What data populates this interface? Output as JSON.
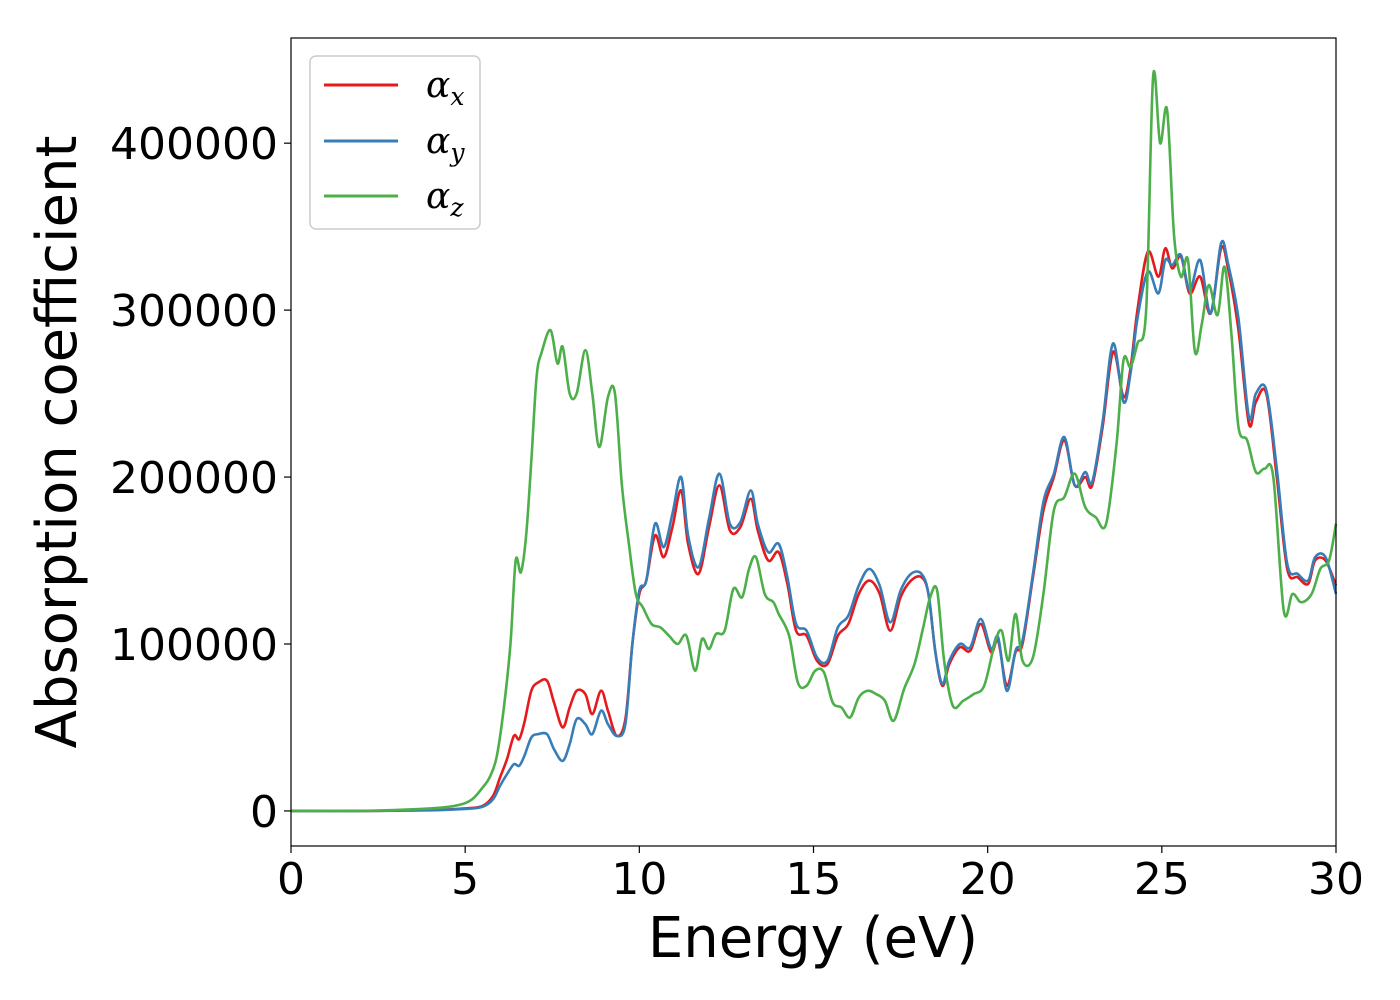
{
  "chart_data": {
    "type": "line",
    "title": "",
    "xlabel": "Energy (eV)",
    "ylabel": "Absorption coefficient",
    "xlim": [
      0,
      30
    ],
    "ylim": [
      -21000,
      463000
    ],
    "xticks": [
      0,
      5,
      10,
      15,
      20,
      25,
      30
    ],
    "yticks": [
      0,
      100000,
      200000,
      300000,
      400000
    ],
    "grid": false,
    "legend_position": "top-left",
    "series": [
      {
        "name": "α_x",
        "symbol": "α",
        "subscript": "x",
        "color": "#e41a1c",
        "x": [
          0,
          2,
          4,
          5,
          5.5,
          5.8,
          6.0,
          6.2,
          6.4,
          6.55,
          6.7,
          6.9,
          7.1,
          7.35,
          7.55,
          7.8,
          8.0,
          8.2,
          8.45,
          8.65,
          8.9,
          9.1,
          9.35,
          9.6,
          9.8,
          10.0,
          10.2,
          10.45,
          10.7,
          10.95,
          11.2,
          11.4,
          11.7,
          12.0,
          12.3,
          12.6,
          12.9,
          13.2,
          13.4,
          13.7,
          14.0,
          14.25,
          14.5,
          14.8,
          15.1,
          15.4,
          15.7,
          16.0,
          16.3,
          16.6,
          16.9,
          17.2,
          17.5,
          17.8,
          18.1,
          18.3,
          18.5,
          18.7,
          18.9,
          19.2,
          19.5,
          19.8,
          20.1,
          20.3,
          20.55,
          20.8,
          21.0,
          21.3,
          21.6,
          21.9,
          22.2,
          22.5,
          22.8,
          23.0,
          23.3,
          23.6,
          23.9,
          24.1,
          24.3,
          24.6,
          24.9,
          25.1,
          25.3,
          25.55,
          25.8,
          26.1,
          26.4,
          26.7,
          26.9,
          27.2,
          27.5,
          27.7,
          28.0,
          28.3,
          28.6,
          28.9,
          29.2,
          29.4,
          29.7,
          30.0
        ],
        "values": [
          0,
          0,
          500,
          1500,
          3000,
          9000,
          20000,
          31000,
          45000,
          43000,
          53000,
          72000,
          77000,
          78000,
          65000,
          50000,
          62000,
          72000,
          70000,
          58000,
          72000,
          60000,
          45000,
          55000,
          100000,
          130000,
          138000,
          165000,
          152000,
          170000,
          192000,
          160000,
          142000,
          170000,
          195000,
          168000,
          170000,
          187000,
          168000,
          150000,
          155000,
          136000,
          108000,
          105000,
          90000,
          88000,
          105000,
          112000,
          130000,
          138000,
          130000,
          108000,
          128000,
          138000,
          140000,
          130000,
          95000,
          75000,
          88000,
          98000,
          96000,
          112000,
          95000,
          102000,
          75000,
          95000,
          100000,
          140000,
          180000,
          200000,
          222000,
          195000,
          200000,
          195000,
          230000,
          275000,
          248000,
          265000,
          300000,
          335000,
          320000,
          337000,
          325000,
          332000,
          310000,
          320000,
          298000,
          337000,
          325000,
          288000,
          232000,
          245000,
          250000,
          200000,
          145000,
          140000,
          136000,
          150000,
          150000,
          135000
        ]
      },
      {
        "name": "α_y",
        "symbol": "α",
        "subscript": "y",
        "color": "#377eb8",
        "x": [
          0,
          2,
          4,
          5,
          5.5,
          5.8,
          6.0,
          6.2,
          6.4,
          6.55,
          6.7,
          6.9,
          7.1,
          7.35,
          7.55,
          7.8,
          8.0,
          8.2,
          8.45,
          8.65,
          8.9,
          9.1,
          9.35,
          9.6,
          9.8,
          10.0,
          10.2,
          10.45,
          10.7,
          10.95,
          11.2,
          11.4,
          11.7,
          12.0,
          12.3,
          12.6,
          12.9,
          13.2,
          13.4,
          13.7,
          14.0,
          14.25,
          14.5,
          14.8,
          15.1,
          15.4,
          15.7,
          16.0,
          16.3,
          16.6,
          16.9,
          17.2,
          17.5,
          17.8,
          18.1,
          18.3,
          18.5,
          18.7,
          18.9,
          19.2,
          19.5,
          19.8,
          20.1,
          20.3,
          20.55,
          20.8,
          21.0,
          21.3,
          21.6,
          21.9,
          22.2,
          22.5,
          22.8,
          23.0,
          23.3,
          23.6,
          23.9,
          24.1,
          24.3,
          24.6,
          24.9,
          25.1,
          25.3,
          25.55,
          25.8,
          26.1,
          26.4,
          26.7,
          26.9,
          27.2,
          27.5,
          27.7,
          28.0,
          28.3,
          28.6,
          28.9,
          29.2,
          29.4,
          29.7,
          30.0
        ],
        "values": [
          0,
          0,
          400,
          1200,
          2500,
          7000,
          15000,
          22000,
          28000,
          27000,
          33000,
          44000,
          46000,
          46000,
          37000,
          30000,
          40000,
          55000,
          52000,
          46000,
          60000,
          52000,
          45000,
          52000,
          100000,
          132000,
          138000,
          172000,
          158000,
          178000,
          200000,
          165000,
          146000,
          175000,
          202000,
          172000,
          173000,
          192000,
          172000,
          155000,
          160000,
          140000,
          112000,
          108000,
          92000,
          90000,
          110000,
          117000,
          135000,
          145000,
          135000,
          113000,
          132000,
          142000,
          142000,
          130000,
          95000,
          76000,
          90000,
          100000,
          98000,
          115000,
          97000,
          104000,
          72000,
          96000,
          102000,
          142000,
          185000,
          202000,
          224000,
          195000,
          203000,
          197000,
          233000,
          280000,
          245000,
          262000,
          295000,
          323000,
          310000,
          330000,
          327000,
          333000,
          312000,
          330000,
          298000,
          340000,
          328000,
          295000,
          236000,
          250000,
          252000,
          205000,
          148000,
          142000,
          138000,
          152000,
          152000,
          130000
        ]
      },
      {
        "name": "α_z",
        "symbol": "α",
        "subscript": "z",
        "color": "#4daf4a",
        "x": [
          0,
          2,
          4,
          4.8,
          5.2,
          5.5,
          5.7,
          5.9,
          6.1,
          6.3,
          6.45,
          6.6,
          6.75,
          6.9,
          7.05,
          7.2,
          7.45,
          7.65,
          7.8,
          8.0,
          8.2,
          8.45,
          8.65,
          8.85,
          9.1,
          9.3,
          9.5,
          9.7,
          9.9,
          10.1,
          10.35,
          10.6,
          10.85,
          11.1,
          11.35,
          11.6,
          11.8,
          12.0,
          12.2,
          12.45,
          12.7,
          12.95,
          13.15,
          13.35,
          13.6,
          13.85,
          14.0,
          14.3,
          14.55,
          14.8,
          15.05,
          15.3,
          15.55,
          15.8,
          16.05,
          16.3,
          16.55,
          16.8,
          17.05,
          17.3,
          17.6,
          17.9,
          18.15,
          18.35,
          18.55,
          18.75,
          19.0,
          19.3,
          19.6,
          19.9,
          20.2,
          20.4,
          20.6,
          20.8,
          21.0,
          21.3,
          21.6,
          21.9,
          22.2,
          22.5,
          22.8,
          23.1,
          23.4,
          23.7,
          23.9,
          24.1,
          24.3,
          24.55,
          24.75,
          24.95,
          25.15,
          25.35,
          25.55,
          25.75,
          25.95,
          26.15,
          26.35,
          26.6,
          26.8,
          27.0,
          27.2,
          27.45,
          27.7,
          27.95,
          28.2,
          28.5,
          28.75,
          29.0,
          29.3,
          29.55,
          29.8,
          30.0
        ],
        "values": [
          0,
          0,
          1500,
          3500,
          7000,
          14000,
          20000,
          32000,
          60000,
          100000,
          150000,
          143000,
          165000,
          210000,
          260000,
          275000,
          288000,
          268000,
          278000,
          250000,
          250000,
          276000,
          250000,
          218000,
          248000,
          250000,
          195000,
          160000,
          130000,
          122000,
          112000,
          110000,
          105000,
          100000,
          105000,
          84000,
          103000,
          97000,
          106000,
          108000,
          133000,
          128000,
          145000,
          152000,
          130000,
          125000,
          118000,
          105000,
          77000,
          75000,
          84000,
          83000,
          65000,
          62000,
          56000,
          68000,
          72000,
          70000,
          66000,
          54000,
          73000,
          88000,
          110000,
          128000,
          132000,
          90000,
          63000,
          66000,
          70000,
          75000,
          100000,
          108000,
          90000,
          118000,
          90000,
          92000,
          130000,
          180000,
          188000,
          202000,
          182000,
          176000,
          172000,
          220000,
          270000,
          266000,
          280000,
          300000,
          440000,
          400000,
          420000,
          345000,
          320000,
          330000,
          275000,
          292000,
          315000,
          297000,
          326000,
          285000,
          230000,
          222000,
          203000,
          205000,
          200000,
          120000,
          130000,
          125000,
          130000,
          145000,
          150000,
          172000
        ]
      }
    ]
  }
}
